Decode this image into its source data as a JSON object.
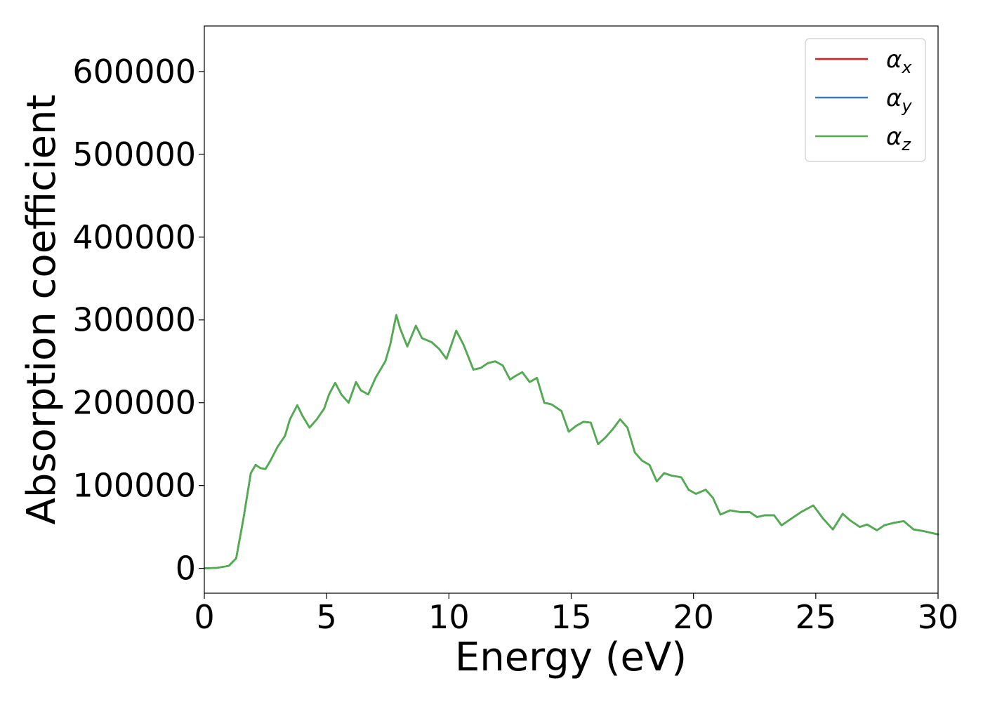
{
  "chart_data": {
    "type": "line",
    "title": "",
    "xlabel": "Energy (eV)",
    "ylabel": "Absorption coefficient",
    "xlim": [
      0,
      30
    ],
    "ylim": [
      -30000,
      655000
    ],
    "xticks": [
      0,
      5,
      10,
      15,
      20,
      25,
      30
    ],
    "xtick_labels": [
      "0",
      "5",
      "10",
      "15",
      "20",
      "25",
      "30"
    ],
    "yticks": [
      0,
      100000,
      200000,
      300000,
      400000,
      500000,
      600000
    ],
    "ytick_labels": [
      "0",
      "100000",
      "200000",
      "300000",
      "400000",
      "500000",
      "600000"
    ],
    "grid": false,
    "legend_position": "top-right",
    "series": [
      {
        "name": "α_x",
        "name_base": "α",
        "name_sub": "x",
        "color": "#e41a1c",
        "x": [
          0,
          0.5,
          1.0,
          1.3,
          1.6,
          1.9,
          2.1,
          2.3,
          2.5,
          2.7,
          3.0,
          3.3,
          3.5,
          3.8,
          4.0,
          4.3,
          4.6,
          4.9,
          5.1,
          5.35,
          5.6,
          5.9,
          6.2,
          6.4,
          6.7,
          7.0,
          7.4,
          7.6,
          7.85,
          8.0,
          8.3,
          8.65,
          8.9,
          9.3,
          9.6,
          9.9,
          10.3,
          10.6,
          11.0,
          11.3,
          11.6,
          11.9,
          12.2,
          12.5,
          12.7,
          13.0,
          13.3,
          13.6,
          13.9,
          14.2,
          14.6,
          14.9,
          15.2,
          15.5,
          15.8,
          16.1,
          16.4,
          16.7,
          17.0,
          17.3,
          17.6,
          17.9,
          18.2,
          18.5,
          18.8,
          19.1,
          19.5,
          19.8,
          20.1,
          20.5,
          20.8,
          21.1,
          21.5,
          21.9,
          22.3,
          22.6,
          22.9,
          23.3,
          23.6,
          24.0,
          24.4,
          24.9,
          25.3,
          25.7,
          26.1,
          26.4,
          26.8,
          27.1,
          27.5,
          27.8,
          28.2,
          28.6,
          29.0,
          29.4,
          29.7,
          30.0
        ],
        "values": [
          0,
          500,
          3000,
          12000,
          60000,
          115000,
          125000,
          121000,
          120000,
          130000,
          147000,
          160000,
          180000,
          197000,
          185000,
          170000,
          180000,
          193000,
          210000,
          224000,
          210000,
          200000,
          225000,
          215000,
          210000,
          230000,
          250000,
          270000,
          306000,
          290000,
          268000,
          293000,
          278000,
          273000,
          265000,
          253000,
          287000,
          270000,
          240000,
          242000,
          248000,
          250000,
          245000,
          228000,
          232000,
          237000,
          225000,
          230000,
          200000,
          198000,
          190000,
          165000,
          172000,
          177000,
          176000,
          150000,
          158000,
          168000,
          180000,
          170000,
          140000,
          130000,
          125000,
          105000,
          115000,
          112000,
          110000,
          95000,
          90000,
          95000,
          85000,
          65000,
          70000,
          68000,
          68000,
          62000,
          64000,
          64000,
          52000,
          60000,
          68000,
          76000,
          60000,
          47000,
          66000,
          58000,
          50000,
          53000,
          46000,
          52000,
          55000,
          57000,
          47000,
          45000,
          43000,
          41000
        ]
      },
      {
        "name": "α_y",
        "name_base": "α",
        "name_sub": "y",
        "color": "#377eb8",
        "x": [
          0,
          0.5,
          1.0,
          1.3,
          1.6,
          1.9,
          2.1,
          2.3,
          2.5,
          2.7,
          3.0,
          3.3,
          3.5,
          3.8,
          4.0,
          4.3,
          4.6,
          4.9,
          5.1,
          5.35,
          5.6,
          5.9,
          6.2,
          6.4,
          6.7,
          7.0,
          7.4,
          7.6,
          7.85,
          8.0,
          8.3,
          8.65,
          8.9,
          9.3,
          9.6,
          9.9,
          10.3,
          10.6,
          11.0,
          11.3,
          11.6,
          11.9,
          12.2,
          12.5,
          12.7,
          13.0,
          13.3,
          13.6,
          13.9,
          14.2,
          14.6,
          14.9,
          15.2,
          15.5,
          15.8,
          16.1,
          16.4,
          16.7,
          17.0,
          17.3,
          17.6,
          17.9,
          18.2,
          18.5,
          18.8,
          19.1,
          19.5,
          19.8,
          20.1,
          20.5,
          20.8,
          21.1,
          21.5,
          21.9,
          22.3,
          22.6,
          22.9,
          23.3,
          23.6,
          24.0,
          24.4,
          24.9,
          25.3,
          25.7,
          26.1,
          26.4,
          26.8,
          27.1,
          27.5,
          27.8,
          28.2,
          28.6,
          29.0,
          29.4,
          29.7,
          30.0
        ],
        "values": [
          0,
          500,
          3000,
          12000,
          60000,
          115000,
          125000,
          121000,
          120000,
          130000,
          147000,
          160000,
          180000,
          197000,
          185000,
          170000,
          180000,
          193000,
          210000,
          224000,
          210000,
          200000,
          225000,
          215000,
          210000,
          230000,
          250000,
          270000,
          306000,
          290000,
          268000,
          293000,
          278000,
          273000,
          265000,
          253000,
          287000,
          270000,
          240000,
          242000,
          248000,
          250000,
          245000,
          228000,
          232000,
          237000,
          225000,
          230000,
          200000,
          198000,
          190000,
          165000,
          172000,
          177000,
          176000,
          150000,
          158000,
          168000,
          180000,
          170000,
          140000,
          130000,
          125000,
          105000,
          115000,
          112000,
          110000,
          95000,
          90000,
          95000,
          85000,
          65000,
          70000,
          68000,
          68000,
          62000,
          64000,
          64000,
          52000,
          60000,
          68000,
          76000,
          60000,
          47000,
          66000,
          58000,
          50000,
          53000,
          46000,
          52000,
          55000,
          57000,
          47000,
          45000,
          43000,
          41000
        ]
      },
      {
        "name": "α_z",
        "name_base": "α",
        "name_sub": "z",
        "color": "#4daf4a",
        "x": [
          0,
          0.5,
          1.0,
          1.3,
          1.6,
          1.9,
          2.1,
          2.3,
          2.5,
          2.7,
          3.0,
          3.3,
          3.5,
          3.8,
          4.0,
          4.3,
          4.6,
          4.9,
          5.1,
          5.35,
          5.6,
          5.9,
          6.2,
          6.4,
          6.7,
          7.0,
          7.4,
          7.6,
          7.85,
          8.0,
          8.3,
          8.65,
          8.9,
          9.3,
          9.6,
          9.9,
          10.3,
          10.6,
          11.0,
          11.3,
          11.6,
          11.9,
          12.2,
          12.5,
          12.7,
          13.0,
          13.3,
          13.6,
          13.9,
          14.2,
          14.6,
          14.9,
          15.2,
          15.5,
          15.8,
          16.1,
          16.4,
          16.7,
          17.0,
          17.3,
          17.6,
          17.9,
          18.2,
          18.5,
          18.8,
          19.1,
          19.5,
          19.8,
          20.1,
          20.5,
          20.8,
          21.1,
          21.5,
          21.9,
          22.3,
          22.6,
          22.9,
          23.3,
          23.6,
          24.0,
          24.4,
          24.9,
          25.3,
          25.7,
          26.1,
          26.4,
          26.8,
          27.1,
          27.5,
          27.8,
          28.2,
          28.6,
          29.0,
          29.4,
          29.7,
          30.0
        ],
        "values": [
          0,
          500,
          3000,
          12000,
          60000,
          115000,
          125000,
          121000,
          120000,
          130000,
          147000,
          160000,
          180000,
          197000,
          185000,
          170000,
          180000,
          193000,
          210000,
          224000,
          210000,
          200000,
          225000,
          215000,
          210000,
          230000,
          250000,
          270000,
          306000,
          290000,
          268000,
          293000,
          278000,
          273000,
          265000,
          253000,
          287000,
          270000,
          240000,
          242000,
          248000,
          250000,
          245000,
          228000,
          232000,
          237000,
          225000,
          230000,
          200000,
          198000,
          190000,
          165000,
          172000,
          177000,
          176000,
          150000,
          158000,
          168000,
          180000,
          170000,
          140000,
          130000,
          125000,
          105000,
          115000,
          112000,
          110000,
          95000,
          90000,
          95000,
          85000,
          65000,
          70000,
          68000,
          68000,
          62000,
          64000,
          64000,
          52000,
          60000,
          68000,
          76000,
          60000,
          47000,
          66000,
          58000,
          50000,
          53000,
          46000,
          52000,
          55000,
          57000,
          47000,
          45000,
          43000,
          41000
        ]
      }
    ]
  }
}
